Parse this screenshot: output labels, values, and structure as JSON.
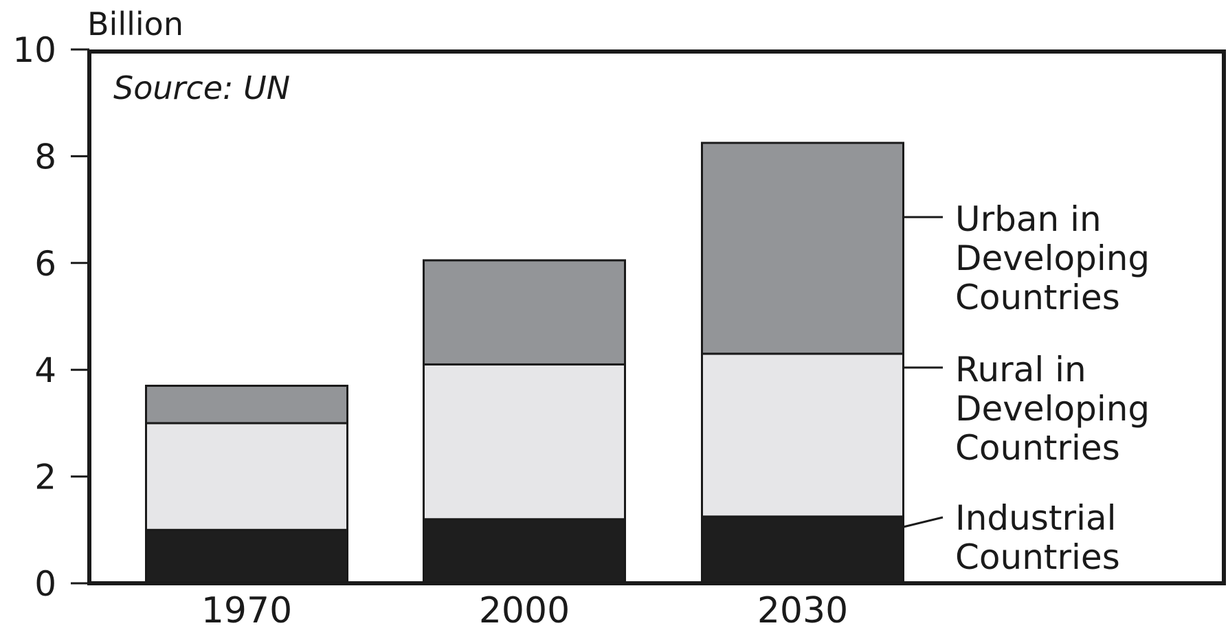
{
  "chart_data": {
    "type": "bar",
    "stacked": true,
    "unit_label": "Billion",
    "note": "Source: UN",
    "categories": [
      "1970",
      "2000",
      "2030"
    ],
    "ylim": [
      0,
      10
    ],
    "yticks": [
      0,
      2,
      4,
      6,
      8,
      10
    ],
    "grid": false,
    "series": [
      {
        "name": "Industrial Countries",
        "label_lines": [
          "Industrial",
          "Countries"
        ],
        "color": "#1e1e1e",
        "values": [
          1.0,
          1.2,
          1.25
        ]
      },
      {
        "name": "Rural in Developing Countries",
        "label_lines": [
          "Rural in",
          "Developing",
          "Countries"
        ],
        "color": "#e6e6e8",
        "values": [
          2.0,
          2.9,
          3.05
        ]
      },
      {
        "name": "Urban in Developing Countries",
        "label_lines": [
          "Urban in",
          "Developing",
          "Countries"
        ],
        "color": "#939598",
        "values": [
          0.7,
          1.95,
          3.95
        ]
      }
    ]
  }
}
